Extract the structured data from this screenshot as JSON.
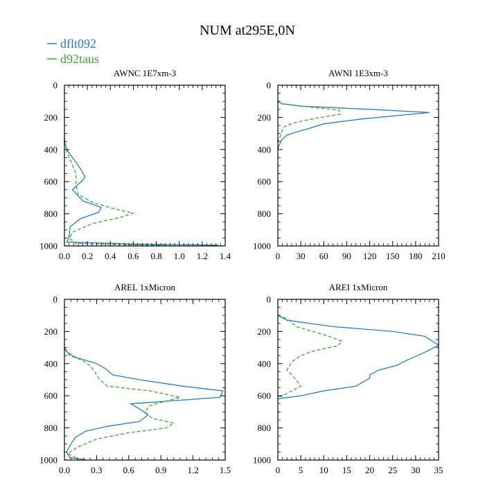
{
  "title": "NUM at295E,0N",
  "legend": [
    {
      "label": "dflt092",
      "color": "#2b7bb9",
      "dash": "solid"
    },
    {
      "label": "d92taus",
      "color": "#3aa53a",
      "dash": "dashed"
    }
  ],
  "chart_data": [
    {
      "type": "line",
      "title": "AWNC  1E7xm-3",
      "xlim": [
        0,
        1.4
      ],
      "ylim": [
        0,
        1000
      ],
      "xticks": [
        0.0,
        0.2,
        0.4,
        0.6,
        0.8,
        1.0,
        1.2,
        1.4
      ],
      "xtick_labels": [
        "0.0",
        "0.2",
        "0.4",
        "0.6",
        "0.8",
        "1.0",
        "1.2",
        "1.4"
      ],
      "yticks": [
        0,
        200,
        400,
        600,
        800,
        1000
      ],
      "ytick_labels": [
        "0",
        "200",
        "400",
        "600",
        "800",
        "1000"
      ],
      "series": [
        {
          "name": "dflt092",
          "points": [
            [
              0,
              300
            ],
            [
              0,
              350
            ],
            [
              0.02,
              400
            ],
            [
              0.08,
              460
            ],
            [
              0.14,
              520
            ],
            [
              0.18,
              570
            ],
            [
              0.16,
              590
            ],
            [
              0.07,
              650
            ],
            [
              0.16,
              720
            ],
            [
              0.32,
              760
            ],
            [
              0.3,
              790
            ],
            [
              0.14,
              830
            ],
            [
              0.05,
              880
            ],
            [
              0.04,
              940
            ],
            [
              0.02,
              975
            ],
            [
              0.6,
              988
            ],
            [
              1.34,
              995
            ]
          ]
        },
        {
          "name": "d92taus",
          "points": [
            [
              0,
              330
            ],
            [
              0.02,
              410
            ],
            [
              0.06,
              480
            ],
            [
              0.1,
              550
            ],
            [
              0.1,
              620
            ],
            [
              0.12,
              680
            ],
            [
              0.25,
              730
            ],
            [
              0.44,
              770
            ],
            [
              0.6,
              795
            ],
            [
              0.5,
              820
            ],
            [
              0.25,
              860
            ],
            [
              0.08,
              910
            ],
            [
              0.04,
              950
            ],
            [
              0.1,
              985
            ],
            [
              0.6,
              993
            ],
            [
              0.9,
              997
            ]
          ]
        }
      ]
    },
    {
      "type": "line",
      "title": "AWNI  1E3xm-3",
      "xlim": [
        0,
        210
      ],
      "ylim": [
        0,
        1000
      ],
      "xticks": [
        0,
        30,
        60,
        90,
        120,
        150,
        180,
        210
      ],
      "xtick_labels": [
        "0",
        "30",
        "60",
        "90",
        "120",
        "150",
        "180",
        "210"
      ],
      "yticks": [
        0,
        200,
        400,
        600,
        800,
        1000
      ],
      "ytick_labels": [
        "0",
        "200",
        "400",
        "600",
        "800",
        "1000"
      ],
      "series": [
        {
          "name": "dflt092",
          "points": [
            [
              0,
              100
            ],
            [
              5,
              115
            ],
            [
              30,
              130
            ],
            [
              120,
              150
            ],
            [
              198,
              170
            ],
            [
              110,
              210
            ],
            [
              60,
              240
            ],
            [
              40,
              270
            ],
            [
              25,
              290
            ],
            [
              12,
              310
            ],
            [
              5,
              340
            ],
            [
              2,
              370
            ],
            [
              0,
              400
            ],
            [
              0,
              450
            ]
          ]
        },
        {
          "name": "d92taus",
          "points": [
            [
              0,
              100
            ],
            [
              5,
              115
            ],
            [
              40,
              135
            ],
            [
              80,
              155
            ],
            [
              82,
              180
            ],
            [
              50,
              205
            ],
            [
              20,
              235
            ],
            [
              8,
              260
            ],
            [
              5,
              290
            ],
            [
              3,
              320
            ],
            [
              1,
              340
            ],
            [
              0,
              360
            ]
          ]
        }
      ]
    },
    {
      "type": "line",
      "title": "AREL  1xMicron",
      "xlim": [
        0,
        1.5
      ],
      "ylim": [
        0,
        1000
      ],
      "xticks": [
        0.0,
        0.3,
        0.6,
        0.9,
        1.2,
        1.5
      ],
      "xtick_labels": [
        "0.0",
        "0.3",
        "0.6",
        "0.9",
        "1.2",
        "1.5"
      ],
      "yticks": [
        0,
        200,
        400,
        600,
        800,
        1000
      ],
      "ytick_labels": [
        "0",
        "200",
        "400",
        "600",
        "800",
        "1000"
      ],
      "series": [
        {
          "name": "dflt092",
          "points": [
            [
              0,
              300
            ],
            [
              0.03,
              330
            ],
            [
              0.1,
              360
            ],
            [
              0.3,
              400
            ],
            [
              0.38,
              430
            ],
            [
              0.45,
              470
            ],
            [
              0.7,
              500
            ],
            [
              1.1,
              540
            ],
            [
              1.48,
              570
            ],
            [
              1.45,
              610
            ],
            [
              0.62,
              650
            ],
            [
              0.72,
              690
            ],
            [
              0.78,
              720
            ],
            [
              0.7,
              760
            ],
            [
              0.4,
              790
            ],
            [
              0.2,
              820
            ],
            [
              0.1,
              860
            ],
            [
              0.06,
              900
            ],
            [
              0.02,
              950
            ],
            [
              0.05,
              985
            ],
            [
              0.2,
              998
            ]
          ]
        },
        {
          "name": "d92taus",
          "points": [
            [
              0,
              310
            ],
            [
              0.05,
              350
            ],
            [
              0.17,
              380
            ],
            [
              0.25,
              420
            ],
            [
              0.3,
              470
            ],
            [
              0.33,
              500
            ],
            [
              0.4,
              540
            ],
            [
              0.8,
              570
            ],
            [
              1.08,
              610
            ],
            [
              0.8,
              660
            ],
            [
              0.75,
              700
            ],
            [
              0.82,
              740
            ],
            [
              1.02,
              770
            ],
            [
              0.95,
              800
            ],
            [
              0.6,
              830
            ],
            [
              0.3,
              870
            ],
            [
              0.12,
              920
            ],
            [
              0.03,
              960
            ],
            [
              0.12,
              990
            ],
            [
              0.2,
              998
            ]
          ]
        }
      ]
    },
    {
      "type": "line",
      "title": "AREI  1xMicron",
      "xlim": [
        0,
        35
      ],
      "ylim": [
        0,
        1000
      ],
      "xticks": [
        0,
        5,
        10,
        15,
        20,
        25,
        30,
        35
      ],
      "xtick_labels": [
        "0",
        "5",
        "10",
        "15",
        "20",
        "25",
        "30",
        "35"
      ],
      "yticks": [
        0,
        200,
        400,
        600,
        800,
        1000
      ],
      "ytick_labels": [
        "0",
        "200",
        "400",
        "600",
        "800",
        "1000"
      ],
      "series": [
        {
          "name": "dflt092",
          "points": [
            [
              0,
              100
            ],
            [
              2,
              130
            ],
            [
              12,
              170
            ],
            [
              25,
              200
            ],
            [
              32,
              230
            ],
            [
              35,
              285
            ],
            [
              32,
              330
            ],
            [
              28,
              380
            ],
            [
              26,
              410
            ],
            [
              22,
              440
            ],
            [
              20,
              470
            ],
            [
              20,
              490
            ],
            [
              17,
              540
            ],
            [
              10,
              570
            ],
            [
              5,
              600
            ],
            [
              1,
              615
            ],
            [
              0,
              620
            ],
            [
              0,
              640
            ]
          ]
        },
        {
          "name": "d92taus",
          "points": [
            [
              0,
              100
            ],
            [
              2,
              120
            ],
            [
              4,
              170
            ],
            [
              10,
              220
            ],
            [
              14,
              260
            ],
            [
              13,
              290
            ],
            [
              8,
              320
            ],
            [
              5,
              350
            ],
            [
              3,
              390
            ],
            [
              2,
              440
            ],
            [
              4,
              500
            ],
            [
              5,
              540
            ],
            [
              3,
              570
            ],
            [
              1,
              600
            ],
            [
              0,
              610
            ],
            [
              0,
              640
            ]
          ]
        }
      ]
    }
  ]
}
